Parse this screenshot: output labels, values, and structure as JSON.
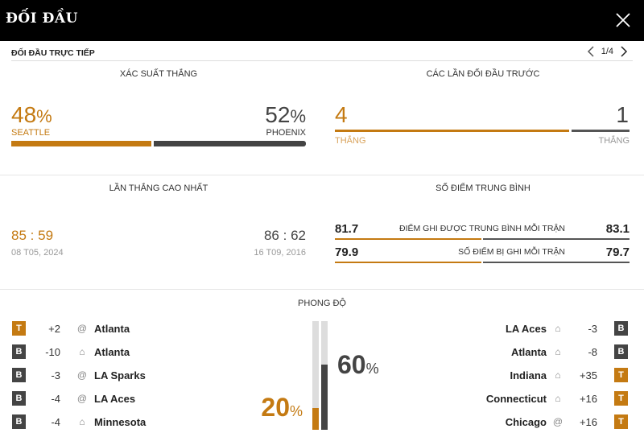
{
  "header": {
    "title": "ĐỐI ĐẦU"
  },
  "subheader": {
    "label": "ĐỐI ĐẦU TRỰC TIẾP",
    "page": "1/4"
  },
  "win_prob": {
    "title": "XÁC SUẤT THẮNG",
    "left": {
      "value": "48",
      "unit": "%",
      "team": "SEATTLE",
      "fraction": 0.48
    },
    "right": {
      "value": "52",
      "unit": "%",
      "team": "PHOENIX",
      "fraction": 0.52
    }
  },
  "h2h": {
    "title": "CÁC LẦN ĐỐI ĐẦU TRƯỚC",
    "left": {
      "value": "4",
      "label": "THẮNG"
    },
    "right": {
      "value": "1",
      "label": "THẮNG"
    }
  },
  "biggest_win": {
    "title": "LẦN THẮNG CAO NHẤT",
    "left": {
      "a": "85",
      "sep": ":",
      "b": "59",
      "date": "08 T05, 2024"
    },
    "right": {
      "a": "86",
      "sep": ":",
      "b": "62",
      "date": "16 T09, 2016"
    }
  },
  "avg_points": {
    "title": "SỐ ĐIỂM TRUNG BÌNH",
    "rows": [
      {
        "left": "81.7",
        "label": "ĐIỂM GHI ĐƯỢC TRUNG BÌNH MỖI TRẬN",
        "right": "83.1"
      },
      {
        "left": "79.9",
        "label": "SỐ ĐIỂM BỊ GHI MỖI TRẬN",
        "right": "79.7"
      }
    ]
  },
  "form": {
    "title": "PHONG ĐỘ",
    "left_pct": {
      "value": "20",
      "unit": "%",
      "fraction": 0.2
    },
    "right_pct": {
      "value": "60",
      "unit": "%",
      "fraction": 0.6
    },
    "left": [
      {
        "result": "T",
        "diff": "+2",
        "venue": "@",
        "team": "Atlanta"
      },
      {
        "result": "B",
        "diff": "-10",
        "venue": "home",
        "team": "Atlanta"
      },
      {
        "result": "B",
        "diff": "-3",
        "venue": "@",
        "team": "LA Sparks"
      },
      {
        "result": "B",
        "diff": "-4",
        "venue": "@",
        "team": "LA Aces"
      },
      {
        "result": "B",
        "diff": "-4",
        "venue": "home",
        "team": "Minnesota"
      }
    ],
    "right": [
      {
        "team": "LA Aces",
        "venue": "home",
        "diff": "-3",
        "result": "B"
      },
      {
        "team": "Atlanta",
        "venue": "home",
        "diff": "-8",
        "result": "B"
      },
      {
        "team": "Indiana",
        "venue": "home",
        "diff": "+35",
        "result": "T"
      },
      {
        "team": "Connecticut",
        "venue": "home",
        "diff": "+16",
        "result": "T"
      },
      {
        "team": "Chicago",
        "venue": "@",
        "diff": "+16",
        "result": "T"
      }
    ]
  },
  "colors": {
    "accent": "#c47a12",
    "dark": "#444444",
    "header_bg": "#000000"
  }
}
